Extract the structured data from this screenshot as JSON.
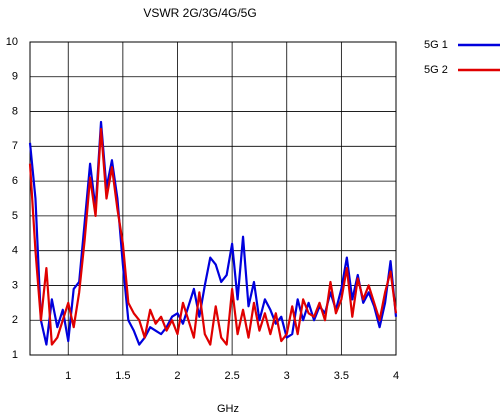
{
  "chart_data": {
    "type": "line",
    "title": "VSWR 2G/3G/4G/5G",
    "x_label": "GHz",
    "x": [
      0.65,
      0.7,
      0.75,
      0.8,
      0.85,
      0.9,
      0.95,
      1,
      1.05,
      1.1,
      1.15,
      1.2,
      1.25,
      1.3,
      1.35,
      1.4,
      1.45,
      1.5,
      1.55,
      1.6,
      1.65,
      1.7,
      1.75,
      1.8,
      1.85,
      1.9,
      1.95,
      2,
      2.05,
      2.1,
      2.15,
      2.2,
      2.25,
      2.3,
      2.35,
      2.4,
      2.45,
      2.5,
      2.55,
      2.6,
      2.65,
      2.7,
      2.75,
      2.8,
      2.85,
      2.9,
      2.95,
      3,
      3.05,
      3.1,
      3.15,
      3.2,
      3.25,
      3.3,
      3.35,
      3.4,
      3.45,
      3.5,
      3.55,
      3.6,
      3.65,
      3.7,
      3.75,
      3.8,
      3.85,
      3.9,
      3.95,
      4
    ],
    "series": [
      {
        "name": "5G 1",
        "color": "#0000dd",
        "values": [
          7.1,
          5.5,
          2.0,
          1.3,
          2.6,
          1.8,
          2.3,
          1.4,
          2.9,
          3.1,
          4.8,
          6.5,
          5.2,
          7.7,
          5.8,
          6.6,
          5.5,
          3.6,
          2.0,
          1.7,
          1.3,
          1.5,
          1.8,
          1.7,
          1.6,
          1.8,
          2.1,
          2.2,
          1.9,
          2.4,
          2.9,
          2.1,
          3.0,
          3.8,
          3.6,
          3.1,
          3.3,
          4.2,
          2.6,
          4.4,
          2.4,
          3.1,
          2.0,
          2.6,
          2.3,
          1.9,
          2.1,
          1.5,
          1.6,
          2.6,
          2.0,
          2.5,
          2.0,
          2.4,
          2.2,
          2.8,
          2.3,
          2.9,
          3.8,
          2.6,
          3.3,
          2.5,
          2.8,
          2.4,
          1.8,
          2.5,
          3.7,
          2.1
        ]
      },
      {
        "name": "5G 2",
        "color": "#e00000",
        "values": [
          6.5,
          4.0,
          2.0,
          3.5,
          1.3,
          1.5,
          2.0,
          2.5,
          1.8,
          2.8,
          4.3,
          6.1,
          5.0,
          7.5,
          5.5,
          6.4,
          5.2,
          4.2,
          2.5,
          2.2,
          2.0,
          1.5,
          2.3,
          1.9,
          2.1,
          1.7,
          2.0,
          1.6,
          2.5,
          2.0,
          1.5,
          2.8,
          1.6,
          1.3,
          2.4,
          1.5,
          1.3,
          2.9,
          1.6,
          2.3,
          1.5,
          2.5,
          1.7,
          2.2,
          1.6,
          2.2,
          1.4,
          1.6,
          2.4,
          1.6,
          2.6,
          2.2,
          2.1,
          2.5,
          2.0,
          3.1,
          2.2,
          2.6,
          3.5,
          2.1,
          3.2,
          2.6,
          3.0,
          2.5,
          2.0,
          2.8,
          3.4,
          2.2
        ]
      }
    ],
    "xlim": [
      0.65,
      4
    ],
    "xticks": [
      1,
      1.5,
      2,
      2.5,
      3,
      3.5,
      4
    ],
    "ylim": [
      1,
      10
    ],
    "yticks": [
      1,
      2,
      3,
      4,
      5,
      6,
      7,
      8,
      9,
      10
    ],
    "grid": true,
    "legend": "right"
  }
}
